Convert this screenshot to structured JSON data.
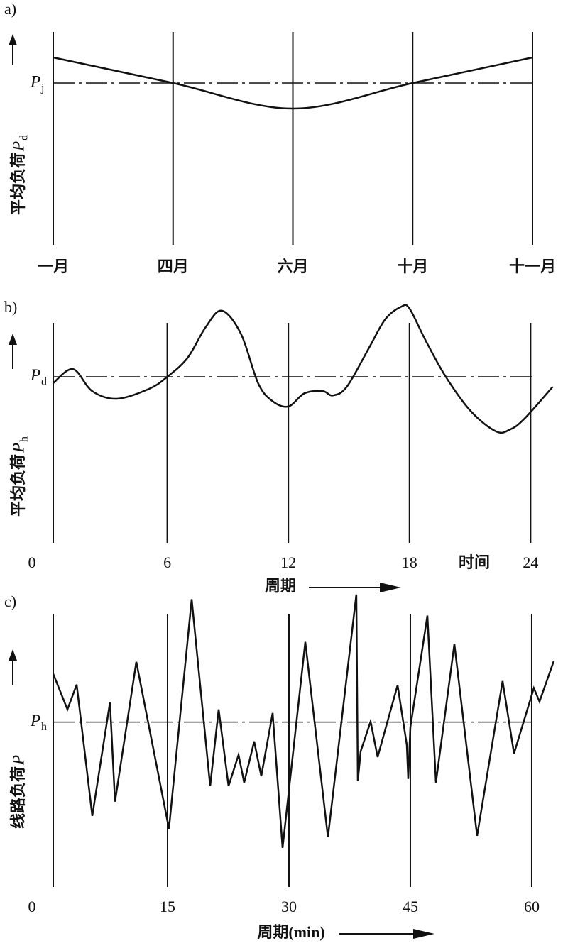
{
  "chart_data": [
    {
      "type": "line",
      "smooth": true,
      "panel_label": "a)",
      "ylabel": "平均负荷",
      "ylabel_symbol": "P",
      "ylabel_subscript": "d",
      "reference": {
        "value": 76,
        "symbol": "P",
        "subscript": "j"
      },
      "categories": [
        "一月",
        "四月",
        "六月",
        "十月",
        "十一月"
      ],
      "values": [
        88,
        76,
        64,
        76,
        88
      ],
      "ylim": [
        0,
        100
      ],
      "color": "#111111"
    },
    {
      "type": "line",
      "smooth": true,
      "panel_label": "b)",
      "ylabel": "平均负荷",
      "ylabel_symbol": "P",
      "ylabel_subscript": "h",
      "reference": {
        "value": 75.5,
        "symbol": "P",
        "subscript": "d"
      },
      "x": [
        0.35,
        1.33,
        2.28,
        3.5,
        5.1,
        6,
        7.0,
        7.9,
        8.7,
        9.65,
        10.5,
        11.2,
        12,
        12.8,
        13.7,
        14.2,
        14.9,
        16,
        16.8,
        17.6,
        18,
        18.8,
        19.8,
        21.05,
        22.3,
        23,
        23.7,
        25.1
      ],
      "values": [
        72.6,
        79,
        69,
        65.5,
        70,
        75.5,
        84,
        98,
        105.5,
        95,
        72.6,
        64.5,
        62,
        68,
        69,
        67,
        71,
        88.7,
        101.6,
        107.4,
        106.5,
        92,
        75.5,
        59.7,
        50.6,
        51.6,
        56.5,
        71
      ],
      "xlim": [
        0,
        25.5
      ],
      "xticks": [
        0,
        6,
        12,
        18,
        24
      ],
      "x_annotation": "时间",
      "xlabel": "周期",
      "ylim": [
        0,
        110
      ],
      "color": "#111111"
    },
    {
      "type": "line",
      "smooth": false,
      "panel_label": "c)",
      "ylabel": "线路负荷",
      "ylabel_symbol": "P",
      "reference": {
        "value": 60.3,
        "symbol": "P",
        "subscript": "h"
      },
      "x": [
        0.88,
        2.63,
        3.77,
        5.7,
        7.89,
        8.51,
        11.14,
        15.18,
        17.98,
        20.26,
        21.32,
        22.54,
        23.77,
        24.47,
        25.7,
        26.58,
        27.98,
        29.21,
        32.02,
        34.82,
        38.33,
        38.51,
        38.86,
        40.09,
        40.96,
        43.42,
        44.56,
        44.74,
        45.0,
        47.11,
        48.16,
        50.44,
        53.25,
        56.4,
        57.81,
        60.26,
        60.96,
        62.72
      ],
      "values": [
        77.9,
        64.9,
        74.0,
        26.0,
        67.5,
        31.2,
        82.3,
        21.3,
        105.2,
        36.9,
        64.9,
        36.9,
        48.3,
        38.2,
        53.2,
        40.5,
        63.6,
        14.3,
        89.6,
        18.2,
        106.9,
        38.7,
        49.6,
        60.5,
        47.5,
        73.8,
        51.9,
        39.5,
        58.4,
        99.2,
        38.2,
        88.8,
        18.7,
        75.3,
        48.8,
        72.7,
        67.8,
        82.6
      ],
      "xlim": [
        0,
        63.6
      ],
      "xticks": [
        0,
        15,
        30,
        45,
        60
      ],
      "xlabel": "周期(min)",
      "ylim": [
        0,
        110
      ],
      "color": "#111111"
    }
  ]
}
